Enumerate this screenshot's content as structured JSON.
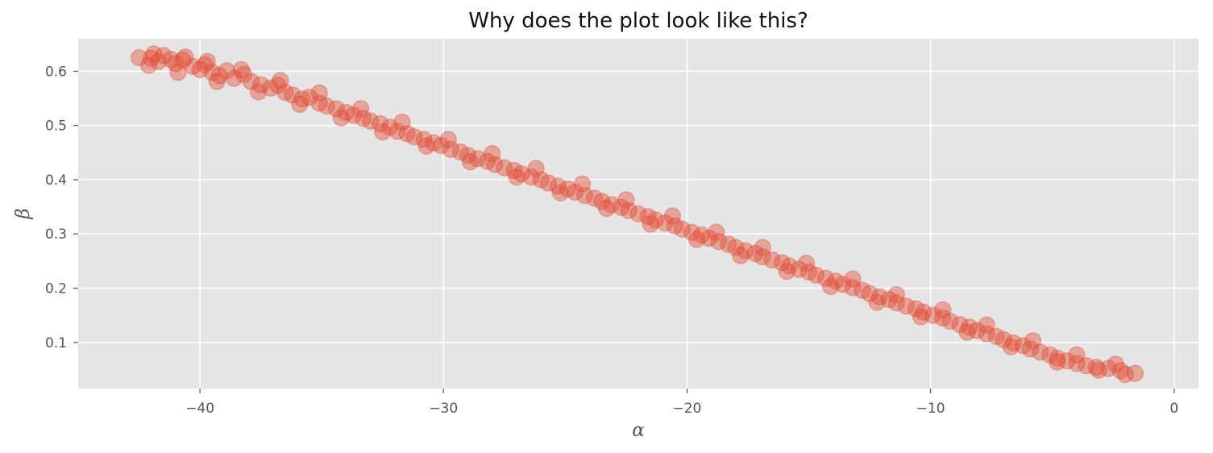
{
  "chart_data": {
    "type": "scatter",
    "title": "Why does the plot look like this?",
    "xlabel": "α",
    "ylabel": "β",
    "xlim": [
      -45,
      1
    ],
    "ylim": [
      0.015,
      0.66
    ],
    "x_ticks": [
      -40,
      -30,
      -20,
      -10,
      0
    ],
    "x_tick_labels": [
      "−40",
      "−30",
      "−20",
      "−10",
      "0"
    ],
    "y_ticks": [
      0.1,
      0.2,
      0.3,
      0.4,
      0.5,
      0.6
    ],
    "y_tick_labels": [
      "0.1",
      "0.2",
      "0.3",
      "0.4",
      "0.5",
      "0.6"
    ],
    "grid": true,
    "background_color": "#E5E5E5",
    "grid_color": "#FFFFFF",
    "marker_color": "#E24A33",
    "marker_alpha": 0.15,
    "series": [
      {
        "points": [
          {
            "x": -42.5,
            "y": 0.625
          },
          {
            "x": -42.0,
            "y": 0.624
          },
          {
            "x": -41.7,
            "y": 0.618
          },
          {
            "x": -41.5,
            "y": 0.629
          },
          {
            "x": -41.2,
            "y": 0.622
          },
          {
            "x": -41.0,
            "y": 0.614
          },
          {
            "x": -40.7,
            "y": 0.621
          },
          {
            "x": -40.3,
            "y": 0.609
          },
          {
            "x": -40.0,
            "y": 0.603
          },
          {
            "x": -39.8,
            "y": 0.612
          },
          {
            "x": -39.5,
            "y": 0.598
          },
          {
            "x": -39.2,
            "y": 0.592
          },
          {
            "x": -38.9,
            "y": 0.601
          },
          {
            "x": -38.6,
            "y": 0.587
          },
          {
            "x": -38.2,
            "y": 0.594
          },
          {
            "x": -37.9,
            "y": 0.581
          },
          {
            "x": -37.5,
            "y": 0.575
          },
          {
            "x": -37.1,
            "y": 0.569
          },
          {
            "x": -36.8,
            "y": 0.574
          },
          {
            "x": -36.5,
            "y": 0.561
          },
          {
            "x": -36.2,
            "y": 0.556
          },
          {
            "x": -35.8,
            "y": 0.549
          },
          {
            "x": -35.5,
            "y": 0.552
          },
          {
            "x": -35.1,
            "y": 0.541
          },
          {
            "x": -34.8,
            "y": 0.536
          },
          {
            "x": -34.4,
            "y": 0.531
          },
          {
            "x": -34.0,
            "y": 0.524
          },
          {
            "x": -33.7,
            "y": 0.519
          },
          {
            "x": -33.3,
            "y": 0.513
          },
          {
            "x": -33.0,
            "y": 0.508
          },
          {
            "x": -32.6,
            "y": 0.503
          },
          {
            "x": -32.2,
            "y": 0.497
          },
          {
            "x": -31.9,
            "y": 0.489
          },
          {
            "x": -31.5,
            "y": 0.485
          },
          {
            "x": -31.2,
            "y": 0.479
          },
          {
            "x": -30.8,
            "y": 0.474
          },
          {
            "x": -30.4,
            "y": 0.468
          },
          {
            "x": -30.1,
            "y": 0.463
          },
          {
            "x": -29.7,
            "y": 0.456
          },
          {
            "x": -29.3,
            "y": 0.451
          },
          {
            "x": -29.0,
            "y": 0.445
          },
          {
            "x": -28.6,
            "y": 0.439
          },
          {
            "x": -28.2,
            "y": 0.434
          },
          {
            "x": -27.9,
            "y": 0.428
          },
          {
            "x": -27.5,
            "y": 0.422
          },
          {
            "x": -27.1,
            "y": 0.417
          },
          {
            "x": -26.8,
            "y": 0.411
          },
          {
            "x": -26.4,
            "y": 0.405
          },
          {
            "x": -26.0,
            "y": 0.4
          },
          {
            "x": -25.7,
            "y": 0.394
          },
          {
            "x": -25.3,
            "y": 0.388
          },
          {
            "x": -24.9,
            "y": 0.383
          },
          {
            "x": -24.6,
            "y": 0.377
          },
          {
            "x": -24.2,
            "y": 0.371
          },
          {
            "x": -23.8,
            "y": 0.366
          },
          {
            "x": -23.5,
            "y": 0.36
          },
          {
            "x": -23.1,
            "y": 0.354
          },
          {
            "x": -22.7,
            "y": 0.349
          },
          {
            "x": -22.4,
            "y": 0.343
          },
          {
            "x": -22.0,
            "y": 0.337
          },
          {
            "x": -21.6,
            "y": 0.332
          },
          {
            "x": -21.3,
            "y": 0.326
          },
          {
            "x": -20.9,
            "y": 0.32
          },
          {
            "x": -20.5,
            "y": 0.315
          },
          {
            "x": -20.2,
            "y": 0.309
          },
          {
            "x": -19.8,
            "y": 0.303
          },
          {
            "x": -19.4,
            "y": 0.298
          },
          {
            "x": -19.1,
            "y": 0.292
          },
          {
            "x": -18.7,
            "y": 0.286
          },
          {
            "x": -18.3,
            "y": 0.281
          },
          {
            "x": -18.0,
            "y": 0.275
          },
          {
            "x": -17.6,
            "y": 0.269
          },
          {
            "x": -17.2,
            "y": 0.264
          },
          {
            "x": -16.9,
            "y": 0.258
          },
          {
            "x": -16.5,
            "y": 0.252
          },
          {
            "x": -16.1,
            "y": 0.247
          },
          {
            "x": -15.8,
            "y": 0.241
          },
          {
            "x": -15.4,
            "y": 0.235
          },
          {
            "x": -15.0,
            "y": 0.23
          },
          {
            "x": -14.7,
            "y": 0.224
          },
          {
            "x": -14.3,
            "y": 0.218
          },
          {
            "x": -13.9,
            "y": 0.213
          },
          {
            "x": -13.6,
            "y": 0.207
          },
          {
            "x": -13.2,
            "y": 0.201
          },
          {
            "x": -12.8,
            "y": 0.196
          },
          {
            "x": -12.5,
            "y": 0.19
          },
          {
            "x": -12.1,
            "y": 0.184
          },
          {
            "x": -11.7,
            "y": 0.179
          },
          {
            "x": -11.4,
            "y": 0.173
          },
          {
            "x": -11.0,
            "y": 0.167
          },
          {
            "x": -10.6,
            "y": 0.162
          },
          {
            "x": -10.3,
            "y": 0.156
          },
          {
            "x": -9.9,
            "y": 0.15
          },
          {
            "x": -9.5,
            "y": 0.145
          },
          {
            "x": -9.2,
            "y": 0.139
          },
          {
            "x": -8.8,
            "y": 0.133
          },
          {
            "x": -8.4,
            "y": 0.128
          },
          {
            "x": -8.1,
            "y": 0.122
          },
          {
            "x": -7.7,
            "y": 0.116
          },
          {
            "x": -7.3,
            "y": 0.111
          },
          {
            "x": -7.0,
            "y": 0.105
          },
          {
            "x": -6.6,
            "y": 0.099
          },
          {
            "x": -6.2,
            "y": 0.094
          },
          {
            "x": -5.9,
            "y": 0.088
          },
          {
            "x": -5.5,
            "y": 0.082
          },
          {
            "x": -5.1,
            "y": 0.077
          },
          {
            "x": -4.8,
            "y": 0.071
          },
          {
            "x": -4.4,
            "y": 0.066
          },
          {
            "x": -4.0,
            "y": 0.061
          },
          {
            "x": -3.6,
            "y": 0.057
          },
          {
            "x": -3.2,
            "y": 0.054
          },
          {
            "x": -2.7,
            "y": 0.052
          },
          {
            "x": -2.2,
            "y": 0.048
          },
          {
            "x": -1.6,
            "y": 0.043
          },
          {
            "x": -41.9,
            "y": 0.632
          },
          {
            "x": -40.6,
            "y": 0.626
          },
          {
            "x": -39.7,
            "y": 0.618
          },
          {
            "x": -38.3,
            "y": 0.603
          },
          {
            "x": -36.7,
            "y": 0.583
          },
          {
            "x": -35.1,
            "y": 0.56
          },
          {
            "x": -33.4,
            "y": 0.531
          },
          {
            "x": -31.7,
            "y": 0.506
          },
          {
            "x": -29.8,
            "y": 0.474
          },
          {
            "x": -28.0,
            "y": 0.448
          },
          {
            "x": -26.2,
            "y": 0.421
          },
          {
            "x": -24.3,
            "y": 0.392
          },
          {
            "x": -22.5,
            "y": 0.363
          },
          {
            "x": -20.6,
            "y": 0.333
          },
          {
            "x": -18.8,
            "y": 0.303
          },
          {
            "x": -16.9,
            "y": 0.275
          },
          {
            "x": -15.1,
            "y": 0.246
          },
          {
            "x": -13.2,
            "y": 0.217
          },
          {
            "x": -11.4,
            "y": 0.188
          },
          {
            "x": -9.5,
            "y": 0.16
          },
          {
            "x": -7.7,
            "y": 0.132
          },
          {
            "x": -5.8,
            "y": 0.103
          },
          {
            "x": -4.0,
            "y": 0.077
          },
          {
            "x": -2.4,
            "y": 0.06
          },
          {
            "x": -42.1,
            "y": 0.611
          },
          {
            "x": -40.9,
            "y": 0.598
          },
          {
            "x": -39.3,
            "y": 0.581
          },
          {
            "x": -37.6,
            "y": 0.562
          },
          {
            "x": -35.9,
            "y": 0.539
          },
          {
            "x": -34.2,
            "y": 0.514
          },
          {
            "x": -32.5,
            "y": 0.488
          },
          {
            "x": -30.7,
            "y": 0.462
          },
          {
            "x": -28.9,
            "y": 0.433
          },
          {
            "x": -27.0,
            "y": 0.405
          },
          {
            "x": -25.2,
            "y": 0.376
          },
          {
            "x": -23.3,
            "y": 0.347
          },
          {
            "x": -21.5,
            "y": 0.318
          },
          {
            "x": -19.6,
            "y": 0.29
          },
          {
            "x": -17.8,
            "y": 0.26
          },
          {
            "x": -15.9,
            "y": 0.231
          },
          {
            "x": -14.1,
            "y": 0.203
          },
          {
            "x": -12.2,
            "y": 0.174
          },
          {
            "x": -10.4,
            "y": 0.147
          },
          {
            "x": -8.5,
            "y": 0.119
          },
          {
            "x": -6.7,
            "y": 0.092
          },
          {
            "x": -4.8,
            "y": 0.064
          },
          {
            "x": -3.1,
            "y": 0.049
          },
          {
            "x": -2.0,
            "y": 0.041
          }
        ]
      }
    ]
  }
}
